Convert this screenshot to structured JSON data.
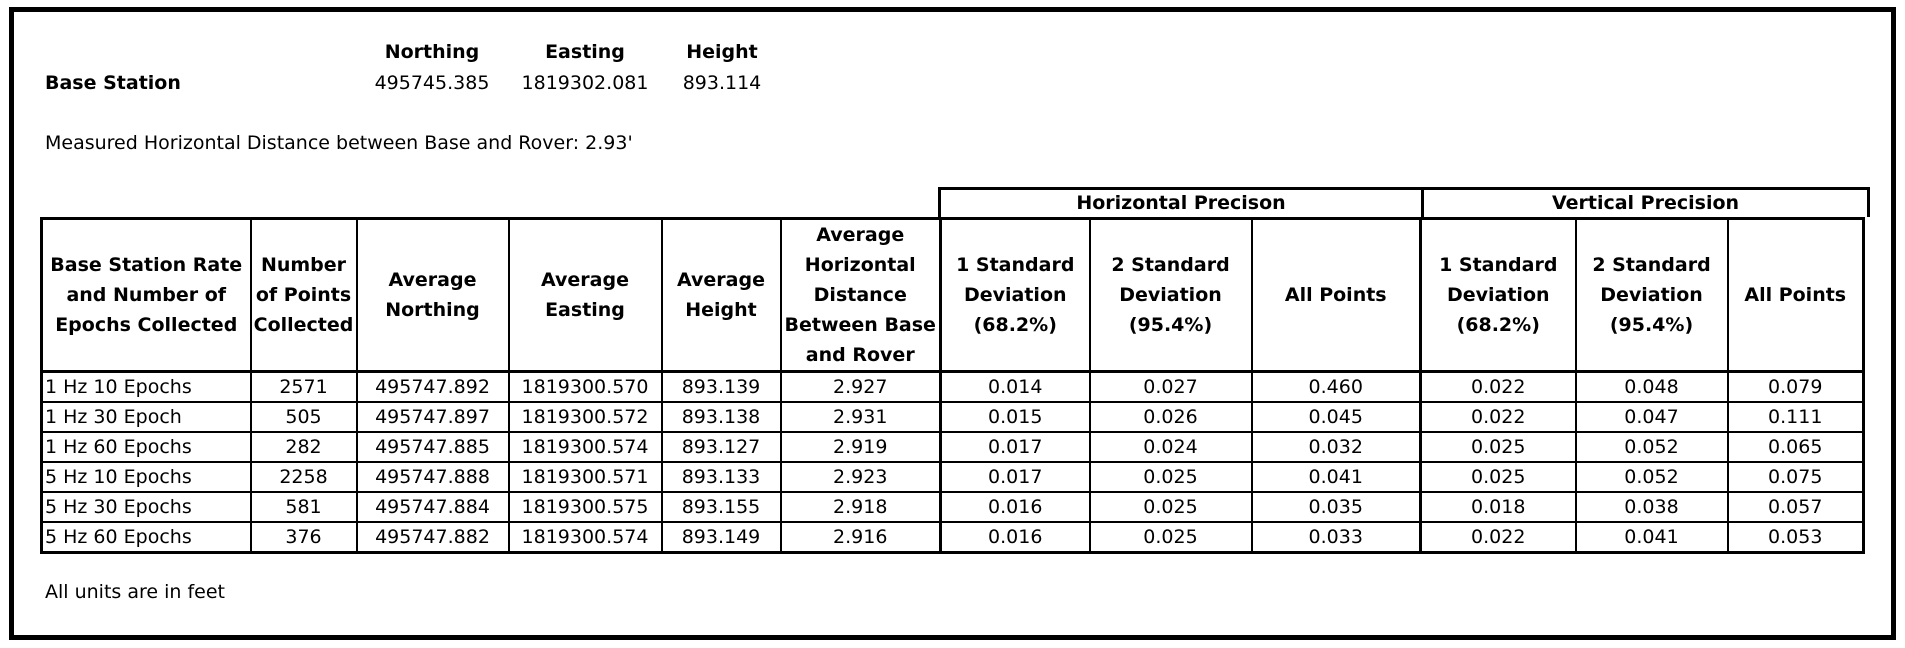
{
  "base_station": {
    "label": "Base Station",
    "headers": {
      "northing": "Northing",
      "easting": "Easting",
      "height": "Height"
    },
    "values": {
      "northing": "495745.385",
      "easting": "1819302.081",
      "height": "893.114"
    }
  },
  "measured_distance": "Measured Horizontal Distance between Base and Rover: 2.93'",
  "groups": {
    "horizontal": "Horizontal Precison",
    "vertical": "Vertical Precision"
  },
  "columns": [
    "Base Station Rate and Number of Epochs Collected",
    "Number of Points Collected",
    "Average Northing",
    "Average Easting",
    "Average Height",
    "Average Horizontal Distance Between Base and Rover",
    "1 Standard Deviation (68.2%)",
    "2 Standard Deviation (95.4%)",
    "All Points",
    "1 Standard Deviation (68.2%)",
    "2 Standard Deviation (95.4%)",
    "All Points"
  ],
  "rows": [
    [
      "1 Hz 10 Epochs",
      "2571",
      "495747.892",
      "1819300.570",
      "893.139",
      "2.927",
      "0.014",
      "0.027",
      "0.460",
      "0.022",
      "0.048",
      "0.079"
    ],
    [
      "1 Hz 30 Epoch",
      "505",
      "495747.897",
      "1819300.572",
      "893.138",
      "2.931",
      "0.015",
      "0.026",
      "0.045",
      "0.022",
      "0.047",
      "0.111"
    ],
    [
      "1 Hz 60 Epochs",
      "282",
      "495747.885",
      "1819300.574",
      "893.127",
      "2.919",
      "0.017",
      "0.024",
      "0.032",
      "0.025",
      "0.052",
      "0.065"
    ],
    [
      "5 Hz 10 Epochs",
      "2258",
      "495747.888",
      "1819300.571",
      "893.133",
      "2.923",
      "0.017",
      "0.025",
      "0.041",
      "0.025",
      "0.052",
      "0.075"
    ],
    [
      "5 Hz 30 Epochs",
      "581",
      "495747.884",
      "1819300.575",
      "893.155",
      "2.918",
      "0.016",
      "0.025",
      "0.035",
      "0.018",
      "0.038",
      "0.057"
    ],
    [
      "5 Hz 60 Epochs",
      "376",
      "495747.882",
      "1819300.574",
      "893.149",
      "2.916",
      "0.016",
      "0.025",
      "0.033",
      "0.022",
      "0.041",
      "0.053"
    ]
  ],
  "footnote": "All units are in feet"
}
